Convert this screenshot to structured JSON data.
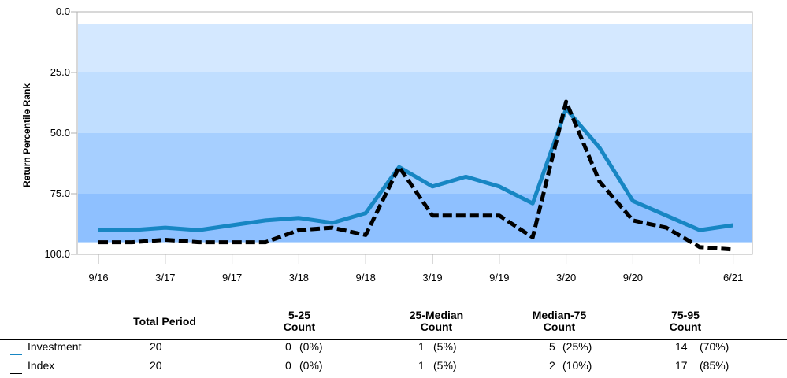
{
  "chart_data": {
    "type": "line",
    "ylabel": "Return Percentile Rank",
    "ylim": [
      0,
      100
    ],
    "y_inverted": true,
    "y_ticks": [
      "0.0",
      "25.0",
      "50.0",
      "75.0",
      "100.0"
    ],
    "x_tick_labels": [
      "9/16",
      "3/17",
      "9/17",
      "3/18",
      "9/18",
      "3/19",
      "9/19",
      "3/20",
      "9/20",
      "6/21"
    ],
    "x": [
      "9/16",
      "12/16",
      "3/17",
      "6/17",
      "9/17",
      "12/17",
      "3/18",
      "6/18",
      "9/18",
      "12/18",
      "3/19",
      "6/19",
      "9/19",
      "12/19",
      "3/20",
      "6/20",
      "9/20",
      "12/20",
      "3/21",
      "6/21"
    ],
    "bands": [
      {
        "from": 5,
        "to": 25,
        "color": "#d4e8ff"
      },
      {
        "from": 25,
        "to": 50,
        "color": "#c0deff"
      },
      {
        "from": 50,
        "to": 75,
        "color": "#a6cfff"
      },
      {
        "from": 75,
        "to": 95,
        "color": "#8ec0ff"
      }
    ],
    "series": [
      {
        "name": "Investment",
        "color": "#1786c3",
        "style": "solid",
        "values": [
          90,
          90,
          89,
          90,
          88,
          86,
          85,
          87,
          83,
          64,
          72,
          68,
          72,
          79,
          40,
          56,
          78,
          84,
          90,
          88
        ]
      },
      {
        "name": "Index",
        "color": "#000000",
        "style": "dashed",
        "values": [
          95,
          95,
          94,
          95,
          95,
          95,
          90,
          89,
          92,
          64,
          84,
          84,
          84,
          93,
          37,
          70,
          86,
          89,
          97,
          98
        ]
      }
    ]
  },
  "table": {
    "headers": [
      {
        "line1": "Total Period",
        "line2": ""
      },
      {
        "line1": "5-25",
        "line2": "Count"
      },
      {
        "line1": "25-Median",
        "line2": "Count"
      },
      {
        "line1": "Median-75",
        "line2": "Count"
      },
      {
        "line1": "75-95",
        "line2": "Count"
      }
    ],
    "rows": [
      {
        "name": "Investment",
        "color": "#1786c3",
        "total": "20",
        "c1": "0",
        "p1": "(0%)",
        "c2": "1",
        "p2": "(5%)",
        "c3": "5",
        "p3": "(25%)",
        "c4": "14",
        "p4": "(70%)"
      },
      {
        "name": "Index",
        "color": "#000000",
        "total": "20",
        "c1": "0",
        "p1": "(0%)",
        "c2": "1",
        "p2": "(5%)",
        "c3": "2",
        "p3": "(10%)",
        "c4": "17",
        "p4": "(85%)"
      }
    ]
  }
}
